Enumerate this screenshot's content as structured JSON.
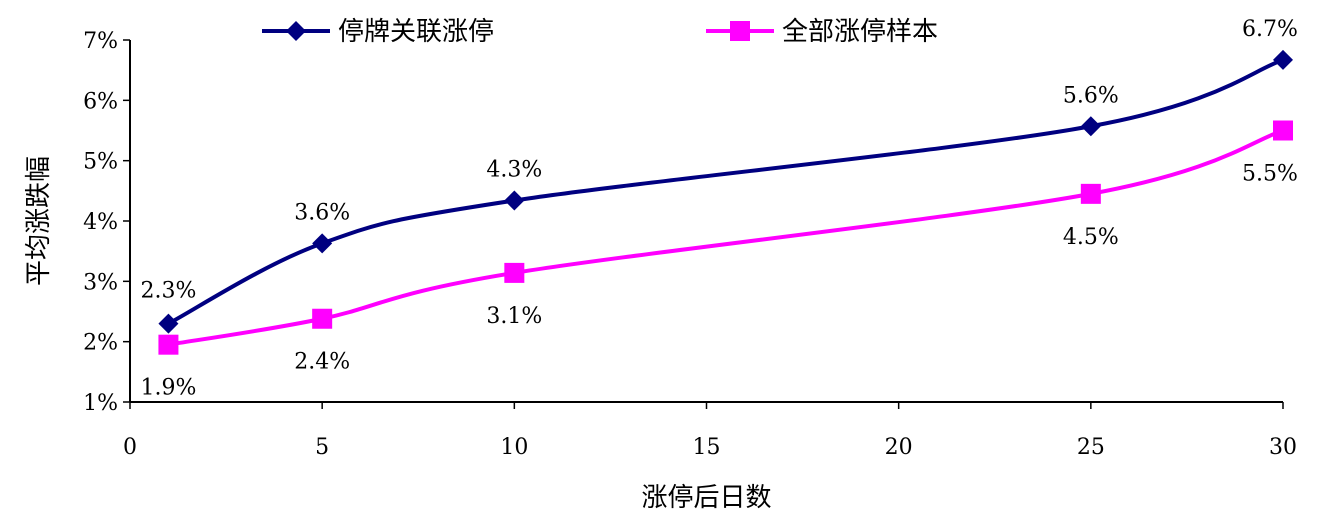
{
  "chart_data": {
    "type": "line",
    "xlabel": "涨停后日数",
    "ylabel": "平均涨跌幅",
    "xlim": [
      0,
      30
    ],
    "ylim": [
      1,
      7
    ],
    "x_ticks": [
      "0",
      "5",
      "10",
      "15",
      "20",
      "25",
      "30"
    ],
    "y_ticks": [
      "1%",
      "2%",
      "3%",
      "4%",
      "5%",
      "6%",
      "7%"
    ],
    "grid": false,
    "legend_position": "top",
    "x": [
      1,
      5,
      10,
      25,
      30
    ],
    "series": [
      {
        "name": "停牌关联涨停",
        "color": "#000080",
        "marker": "diamond",
        "values": [
          2.3,
          3.63,
          4.34,
          5.57,
          6.67
        ],
        "labels": [
          "2.3%",
          "3.6%",
          "4.3%",
          "5.6%",
          "6.7%"
        ]
      },
      {
        "name": "全部涨停样本",
        "color": "#FF00FF",
        "marker": "square",
        "values": [
          1.95,
          2.38,
          3.14,
          4.45,
          5.5
        ],
        "labels": [
          "1.9%",
          "2.4%",
          "3.1%",
          "4.5%",
          "5.5%"
        ]
      }
    ]
  }
}
